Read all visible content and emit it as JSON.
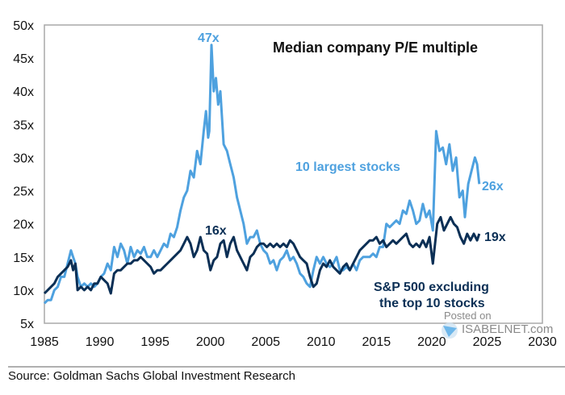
{
  "chart_data": {
    "type": "line",
    "title": "Median company P/E multiple",
    "xlabel": "",
    "ylabel": "",
    "xlim": [
      1985,
      2030
    ],
    "ylim": [
      5,
      50
    ],
    "x_ticks": [
      "1985",
      "1990",
      "1995",
      "2000",
      "2005",
      "2010",
      "2015",
      "2020",
      "2025",
      "2030"
    ],
    "y_ticks": [
      "5x",
      "10x",
      "15x",
      "20x",
      "25x",
      "30x",
      "35x",
      "40x",
      "45x",
      "50x"
    ],
    "grid": false,
    "series": [
      {
        "name": "10 largest stocks",
        "color": "#4ea1df",
        "label": "10 largest stocks",
        "end_label": "26x",
        "peak_label": "47x",
        "x": [
          1985.0,
          1985.3,
          1985.6,
          1985.9,
          1986.2,
          1986.5,
          1986.8,
          1987.1,
          1987.4,
          1987.6,
          1987.8,
          1988.0,
          1988.3,
          1988.6,
          1988.9,
          1989.2,
          1989.5,
          1989.8,
          1990.1,
          1990.4,
          1990.7,
          1991.0,
          1991.3,
          1991.6,
          1991.9,
          1992.2,
          1992.5,
          1992.8,
          1993.1,
          1993.4,
          1993.7,
          1994.0,
          1994.3,
          1994.6,
          1994.9,
          1995.2,
          1995.5,
          1995.8,
          1996.1,
          1996.4,
          1996.7,
          1997.0,
          1997.3,
          1997.6,
          1997.9,
          1998.2,
          1998.5,
          1998.8,
          1999.1,
          1999.4,
          1999.6,
          1999.8,
          1999.9,
          2000.1,
          2000.3,
          2000.5,
          2000.7,
          2000.9,
          2001.2,
          2001.5,
          2001.8,
          2002.1,
          2002.4,
          2002.7,
          2003.0,
          2003.3,
          2003.6,
          2003.9,
          2004.2,
          2004.5,
          2004.8,
          2005.1,
          2005.4,
          2005.7,
          2006.0,
          2006.3,
          2006.6,
          2006.9,
          2007.2,
          2007.5,
          2007.8,
          2008.1,
          2008.4,
          2008.7,
          2009.0,
          2009.3,
          2009.6,
          2009.9,
          2010.2,
          2010.5,
          2010.8,
          2011.1,
          2011.4,
          2011.7,
          2012.0,
          2012.3,
          2012.6,
          2012.9,
          2013.2,
          2013.5,
          2013.8,
          2014.1,
          2014.4,
          2014.7,
          2015.0,
          2015.3,
          2015.6,
          2015.9,
          2016.2,
          2016.5,
          2016.8,
          2017.1,
          2017.4,
          2017.7,
          2018.0,
          2018.3,
          2018.6,
          2018.9,
          2019.2,
          2019.5,
          2019.8,
          2020.1,
          2020.4,
          2020.7,
          2021.0,
          2021.3,
          2021.6,
          2021.9,
          2022.2,
          2022.5,
          2022.8,
          2023.0,
          2023.3,
          2023.6,
          2023.9,
          2024.1,
          2024.3
        ],
        "y": [
          8,
          8.5,
          8.5,
          10,
          10.5,
          12,
          12,
          14,
          16,
          15,
          14,
          12,
          10.5,
          11,
          10.5,
          11,
          10.5,
          11,
          12,
          12.5,
          14,
          13,
          16.5,
          15,
          17,
          16,
          14,
          16.5,
          15,
          16,
          15.5,
          16.5,
          15,
          15,
          16,
          15,
          16,
          17,
          16.5,
          18.5,
          18,
          19.5,
          22,
          24,
          25,
          28,
          27,
          31,
          29,
          34,
          37,
          33,
          34,
          47,
          40,
          42,
          38,
          40,
          32,
          31,
          29,
          27,
          24,
          22,
          20,
          17,
          18,
          18,
          19,
          17,
          16,
          15.5,
          14,
          14.5,
          13,
          14.5,
          15,
          16,
          14.5,
          15,
          14,
          12.5,
          12,
          11,
          10.5,
          13,
          15,
          14,
          15,
          14,
          13.5,
          14,
          15,
          13,
          13,
          13.5,
          13,
          14,
          13,
          14.5,
          15,
          15,
          15,
          15.5,
          15,
          16.5,
          16.5,
          20,
          19.5,
          20,
          20.5,
          20,
          22,
          21.5,
          23.5,
          22,
          20,
          20.5,
          23,
          21,
          22,
          19,
          34,
          31,
          31.5,
          29,
          32,
          28,
          30,
          24,
          25,
          21,
          26,
          28,
          30,
          29,
          26
        ]
      },
      {
        "name": "S&P 500 excluding the top 10 stocks",
        "color": "#0b2f55",
        "label_line1": "S&P 500 excluding",
        "label_line2": "the top 10 stocks",
        "end_label": "19x",
        "mid_label": "16x",
        "x": [
          1985.0,
          1985.3,
          1985.6,
          1985.9,
          1986.2,
          1986.5,
          1986.8,
          1987.1,
          1987.4,
          1987.6,
          1987.8,
          1988.0,
          1988.3,
          1988.6,
          1988.9,
          1989.2,
          1989.5,
          1989.8,
          1990.1,
          1990.4,
          1990.7,
          1991.0,
          1991.3,
          1991.6,
          1991.9,
          1992.2,
          1992.5,
          1992.8,
          1993.1,
          1993.4,
          1993.7,
          1994.0,
          1994.3,
          1994.6,
          1994.9,
          1995.2,
          1995.5,
          1995.8,
          1996.1,
          1996.4,
          1996.7,
          1997.0,
          1997.3,
          1997.6,
          1997.9,
          1998.2,
          1998.5,
          1998.8,
          1999.1,
          1999.4,
          1999.7,
          2000.0,
          2000.3,
          2000.6,
          2000.9,
          2001.2,
          2001.5,
          2001.8,
          2002.1,
          2002.4,
          2002.7,
          2003.0,
          2003.3,
          2003.6,
          2003.9,
          2004.2,
          2004.5,
          2004.8,
          2005.1,
          2005.4,
          2005.7,
          2006.0,
          2006.3,
          2006.6,
          2006.9,
          2007.2,
          2007.5,
          2007.8,
          2008.1,
          2008.4,
          2008.7,
          2009.0,
          2009.3,
          2009.6,
          2009.9,
          2010.2,
          2010.5,
          2010.8,
          2011.1,
          2011.4,
          2011.7,
          2012.0,
          2012.3,
          2012.6,
          2012.9,
          2013.2,
          2013.5,
          2013.8,
          2014.1,
          2014.4,
          2014.7,
          2015.0,
          2015.3,
          2015.6,
          2015.9,
          2016.2,
          2016.5,
          2016.8,
          2017.1,
          2017.4,
          2017.7,
          2018.0,
          2018.3,
          2018.6,
          2018.9,
          2019.2,
          2019.5,
          2019.8,
          2020.1,
          2020.3,
          2020.5,
          2020.8,
          2021.1,
          2021.4,
          2021.7,
          2022.0,
          2022.3,
          2022.6,
          2022.9,
          2023.2,
          2023.5,
          2023.8,
          2024.1,
          2024.3
        ],
        "y": [
          9.5,
          10,
          10.5,
          11,
          12,
          12.5,
          13,
          13.5,
          14.5,
          13,
          14,
          10,
          10.5,
          10,
          10.5,
          10,
          11,
          11,
          12,
          11.5,
          11,
          9.5,
          12.5,
          13,
          13,
          13.5,
          14,
          14,
          14.5,
          14.5,
          15,
          14.5,
          14,
          13.5,
          12.5,
          13,
          13,
          13.5,
          14,
          14.5,
          15,
          15.5,
          16,
          17,
          18,
          17,
          15,
          16,
          18,
          16,
          15.5,
          13,
          14.5,
          15,
          17,
          17.5,
          15,
          17,
          18,
          16,
          15,
          14,
          13,
          15,
          15.5,
          16.5,
          17,
          17,
          16.5,
          17,
          16.5,
          17,
          16.5,
          17,
          16.5,
          17.5,
          17,
          16,
          15,
          14.5,
          14,
          12,
          10.5,
          11,
          13,
          14,
          13.5,
          14.5,
          13.5,
          13,
          12.5,
          13.5,
          14,
          13,
          14,
          15,
          16,
          16.5,
          17,
          17.5,
          17.5,
          18,
          17,
          17.5,
          16.5,
          17,
          17.5,
          17,
          17.5,
          18,
          18.5,
          17,
          16.5,
          17,
          16.5,
          17.5,
          16.5,
          18,
          14,
          17,
          20,
          21,
          19,
          20,
          21,
          20,
          19.5,
          18,
          17,
          18.5,
          17.5,
          18.5,
          17.5,
          18.5
        ]
      }
    ],
    "annotations": [
      {
        "text": "47x",
        "series": "10 largest stocks",
        "x": 2000.1,
        "y": 47
      },
      {
        "text": "16x",
        "series": "S&P 500 excluding the top 10 stocks",
        "x": 2001.0,
        "y": 18
      }
    ],
    "legend": "inline-labels"
  },
  "source": "Source: Goldman Sachs Global Investment Research",
  "watermark": {
    "line1": "Posted on",
    "line2": "ISABELNET.com"
  }
}
